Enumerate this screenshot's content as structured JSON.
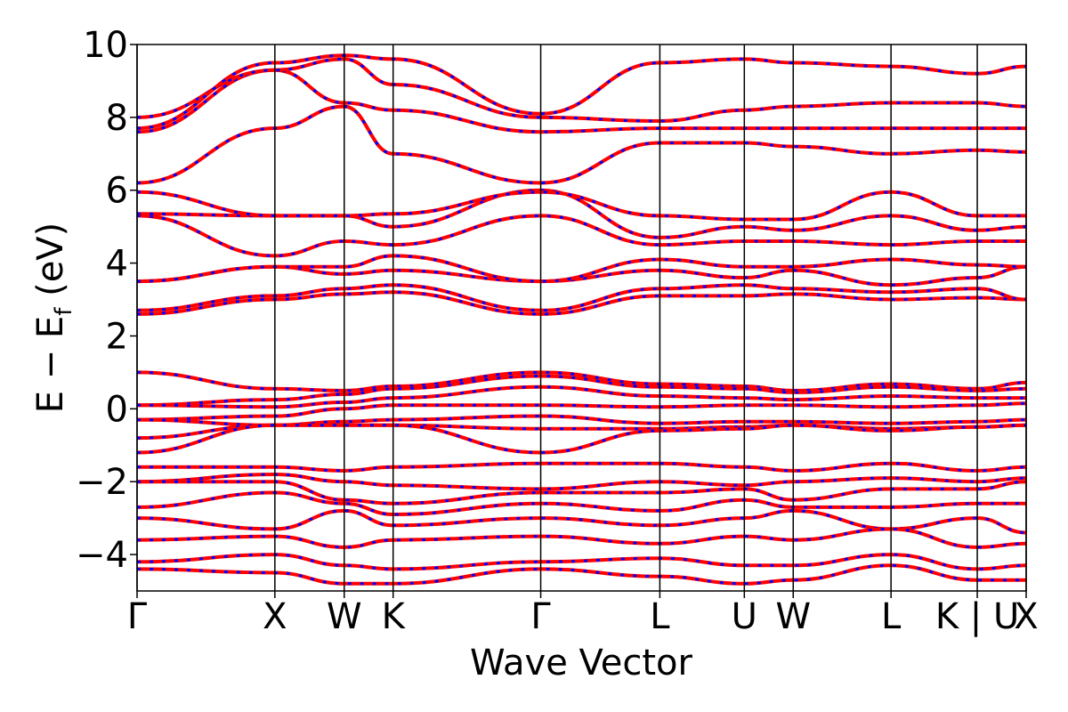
{
  "chart_data": {
    "type": "line",
    "xlabel": "Wave Vector",
    "ylabel": "E − E",
    "ylabel_sub": "f",
    "ylabel_unit": " (eV)",
    "ylim": [
      -5,
      10
    ],
    "yticks": [
      10,
      8,
      6,
      4,
      2,
      0,
      -2,
      -4
    ],
    "ytick_labels": [
      "10",
      "8",
      "6",
      "4",
      "2",
      "0",
      "−2",
      "−4"
    ],
    "xlim": [
      0,
      1
    ],
    "kpoints": [
      {
        "label": "Γ",
        "x": 0.0
      },
      {
        "label": "X",
        "x": 0.155
      },
      {
        "label": "W",
        "x": 0.233
      },
      {
        "label": "K",
        "x": 0.288
      },
      {
        "label": "Γ",
        "x": 0.454
      },
      {
        "label": "L",
        "x": 0.588
      },
      {
        "label": "U",
        "x": 0.683
      },
      {
        "label": "W",
        "x": 0.738
      },
      {
        "label": "L",
        "x": 0.848
      },
      {
        "label": "K | U",
        "x": 0.945
      },
      {
        "label": "X",
        "x": 1.0
      }
    ],
    "line_colors": {
      "primary": "#ff0000",
      "overlay": "#0000ff"
    },
    "series": [
      {
        "y": [
          1.0,
          0.55,
          0.5,
          0.62,
          1.0,
          0.68,
          0.62,
          0.5,
          0.68,
          0.55,
          0.72
        ]
      },
      {
        "y": [
          0.1,
          0.25,
          0.4,
          0.55,
          0.9,
          0.6,
          0.55,
          0.45,
          0.6,
          0.5,
          0.55
        ]
      },
      {
        "y": [
          0.1,
          0.05,
          0.18,
          0.3,
          0.6,
          0.35,
          0.3,
          0.25,
          0.35,
          0.3,
          0.3
        ]
      },
      {
        "y": [
          -0.3,
          -0.2,
          0.0,
          0.1,
          0.1,
          0.05,
          0.1,
          0.1,
          0.05,
          0.1,
          0.15
        ]
      },
      {
        "y": [
          -0.3,
          -0.45,
          -0.35,
          -0.3,
          -0.2,
          -0.4,
          -0.35,
          -0.35,
          -0.4,
          -0.35,
          -0.3
        ]
      },
      {
        "y": [
          -0.8,
          -0.45,
          -0.45,
          -0.45,
          -0.55,
          -0.55,
          -0.5,
          -0.45,
          -0.55,
          -0.5,
          -0.45
        ]
      },
      {
        "y": [
          -1.2,
          -0.45,
          -0.45,
          -0.45,
          -1.2,
          -0.6,
          -0.55,
          -0.45,
          -0.6,
          -0.5,
          -0.45
        ]
      },
      {
        "y": [
          2.6,
          3.0,
          3.15,
          3.2,
          2.6,
          3.1,
          3.1,
          3.15,
          3.0,
          3.05,
          3.0
        ]
      },
      {
        "y": [
          2.7,
          3.1,
          3.3,
          3.4,
          2.7,
          3.3,
          3.4,
          3.3,
          3.2,
          3.3,
          3.0
        ]
      },
      {
        "y": [
          3.5,
          3.9,
          3.7,
          3.8,
          3.5,
          3.8,
          3.6,
          3.8,
          3.4,
          3.6,
          3.9
        ]
      },
      {
        "y": [
          3.5,
          3.9,
          3.9,
          4.2,
          3.5,
          4.1,
          3.9,
          3.9,
          4.1,
          3.95,
          3.9
        ]
      },
      {
        "y": [
          5.3,
          4.2,
          4.6,
          4.5,
          5.3,
          4.5,
          4.6,
          4.6,
          4.5,
          4.6,
          4.6
        ]
      },
      {
        "y": [
          5.35,
          5.3,
          5.3,
          5.0,
          6.0,
          4.7,
          5.0,
          4.9,
          5.3,
          4.9,
          5.0
        ]
      },
      {
        "y": [
          5.95,
          5.3,
          5.3,
          5.35,
          5.95,
          5.3,
          5.2,
          5.2,
          5.95,
          5.3,
          5.3
        ]
      },
      {
        "y": [
          6.2,
          7.7,
          8.3,
          7.0,
          6.2,
          7.3,
          7.3,
          7.2,
          7.0,
          7.1,
          7.05
        ]
      },
      {
        "y": [
          7.6,
          9.3,
          8.4,
          8.2,
          7.6,
          7.7,
          7.7,
          7.7,
          7.7,
          7.7,
          7.7
        ]
      },
      {
        "y": [
          8.0,
          9.3,
          9.6,
          8.9,
          8.0,
          7.9,
          8.2,
          8.3,
          8.4,
          8.4,
          8.3
        ]
      },
      {
        "y": [
          7.7,
          9.5,
          9.7,
          9.6,
          8.1,
          9.5,
          9.6,
          9.5,
          9.4,
          9.2,
          9.4
        ]
      },
      {
        "y": [
          -1.6,
          -1.6,
          -1.7,
          -1.6,
          -1.5,
          -1.5,
          -1.6,
          -1.7,
          -1.5,
          -1.7,
          -1.6
        ]
      },
      {
        "y": [
          -2.0,
          -1.8,
          -2.0,
          -2.1,
          -2.2,
          -2.0,
          -2.1,
          -2.0,
          -1.9,
          -2.0,
          -1.9
        ]
      },
      {
        "y": [
          -2.0,
          -2.0,
          -2.5,
          -2.6,
          -2.3,
          -2.3,
          -2.2,
          -2.5,
          -2.2,
          -2.2,
          -2.0
        ]
      },
      {
        "y": [
          -2.7,
          -2.3,
          -2.6,
          -2.9,
          -2.6,
          -2.8,
          -2.5,
          -2.7,
          -2.7,
          -2.6,
          -2.6
        ]
      },
      {
        "y": [
          -3.0,
          -3.3,
          -2.8,
          -3.2,
          -3.0,
          -3.2,
          -3.0,
          -2.8,
          -3.3,
          -3.0,
          -3.4
        ]
      },
      {
        "y": [
          -3.6,
          -3.5,
          -3.8,
          -3.6,
          -3.5,
          -3.7,
          -3.5,
          -3.6,
          -3.3,
          -3.8,
          -3.7
        ]
      },
      {
        "y": [
          -4.2,
          -4.0,
          -4.3,
          -4.4,
          -4.2,
          -4.1,
          -4.3,
          -4.3,
          -4.0,
          -4.4,
          -4.3
        ]
      },
      {
        "y": [
          -4.4,
          -4.5,
          -4.8,
          -4.8,
          -4.4,
          -4.6,
          -4.8,
          -4.7,
          -4.3,
          -4.7,
          -4.7
        ]
      }
    ]
  }
}
